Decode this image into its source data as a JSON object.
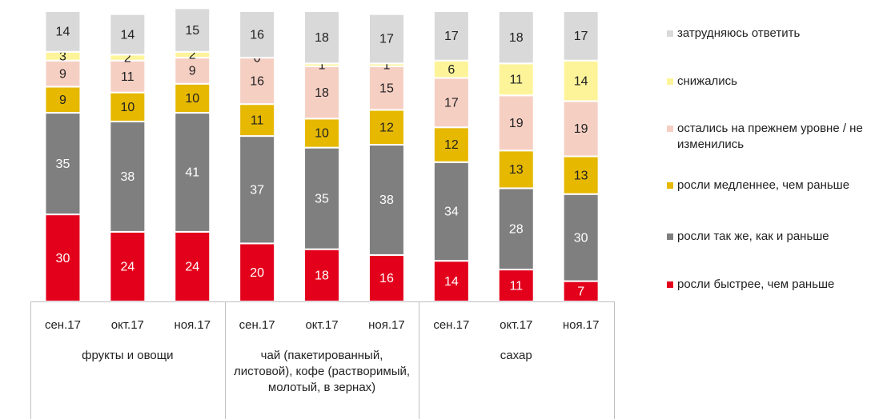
{
  "chart_data": {
    "type": "stacked_bar",
    "categories": [
      "сен.17",
      "окт.17",
      "ноя.17",
      "сен.17",
      "окт.17",
      "ноя.17",
      "сен.17",
      "окт.17",
      "ноя.17"
    ],
    "groups": [
      "фрукты и овощи",
      "чай (пакетированный, листовой), кофе (растворимый, молотый, в зернах)",
      "сахар"
    ],
    "series": [
      {
        "name": "росли быстрее, чем раньше",
        "color": "#e3001b",
        "label_color": "#ffffff",
        "values": [
          30,
          24,
          24,
          20,
          18,
          16,
          14,
          11,
          7
        ]
      },
      {
        "name": "росли так же, как и раньше",
        "color": "#7f7f7f",
        "label_color": "#ffffff",
        "values": [
          35,
          38,
          41,
          37,
          35,
          38,
          34,
          28,
          30
        ]
      },
      {
        "name": "росли медленнее, чем раньше",
        "color": "#e6b800",
        "label_color": "#222222",
        "values": [
          9,
          10,
          10,
          11,
          10,
          12,
          12,
          13,
          13
        ]
      },
      {
        "name": "остались на прежнем уровне / не изменились",
        "color": "#f6cfc3",
        "label_color": "#222222",
        "values": [
          9,
          11,
          9,
          16,
          18,
          15,
          17,
          19,
          19
        ]
      },
      {
        "name": "снижались",
        "color": "#fdf49a",
        "label_color": "#222222",
        "values": [
          3,
          2,
          2,
          0,
          1,
          1,
          6,
          11,
          14
        ]
      },
      {
        "name": "затрудняюсь ответить",
        "color": "#d9d9d9",
        "label_color": "#222222",
        "values": [
          14,
          14,
          15,
          16,
          18,
          17,
          17,
          18,
          17
        ]
      }
    ]
  }
}
